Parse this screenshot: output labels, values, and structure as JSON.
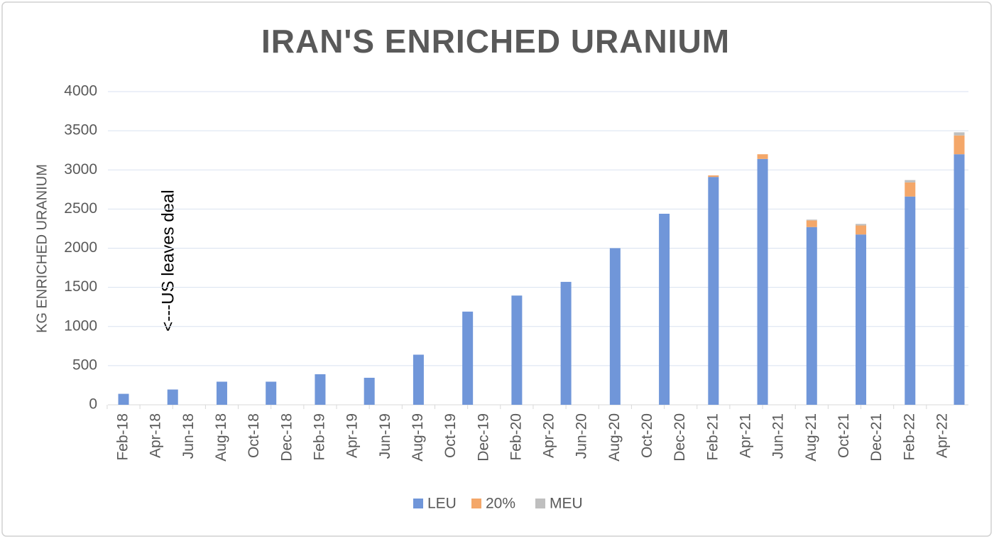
{
  "chart_data": {
    "type": "stacked-bar",
    "title": "IRAN'S ENRICHED URANIUM",
    "y_label": "KG ENRICHED URANIUM",
    "annotation": "<---US leaves deal",
    "categories": [
      "Feb-18",
      null,
      "Apr-18",
      null,
      "Jun-18",
      null,
      "Aug-18",
      null,
      "Oct-18",
      null,
      "Dec-18",
      null,
      "Feb-19",
      null,
      "Apr-19",
      null,
      "Jun-19",
      null,
      "Aug-19",
      null,
      "Oct-19",
      null,
      "Dec-19",
      null,
      "Feb-20",
      null,
      "Apr-20",
      null,
      "Jun-20",
      null,
      "Aug-20",
      null,
      "Oct-20",
      null,
      "Dec-20",
      null,
      "Feb-21",
      null,
      "Apr-21",
      null,
      "Jun-21",
      null,
      "Aug-21",
      null,
      "Oct-21",
      null,
      "Dec-21",
      null,
      "Feb-22",
      null,
      "Apr-22",
      null
    ],
    "series": [
      {
        "name": "LEU",
        "color": "#7096d9",
        "values": [
          140,
          null,
          null,
          195,
          null,
          null,
          295,
          null,
          null,
          295,
          null,
          null,
          390,
          null,
          null,
          345,
          null,
          null,
          640,
          null,
          null,
          1190,
          null,
          null,
          1395,
          null,
          null,
          1570,
          null,
          null,
          2000,
          null,
          null,
          2440,
          null,
          null,
          2910,
          null,
          null,
          3140,
          null,
          null,
          2270,
          null,
          null,
          2175,
          null,
          null,
          2660,
          null,
          null,
          3200
        ]
      },
      {
        "name": "20%",
        "color": "#f4a769",
        "values": [
          null,
          null,
          null,
          null,
          null,
          null,
          null,
          null,
          null,
          null,
          null,
          null,
          null,
          null,
          null,
          null,
          null,
          null,
          null,
          null,
          null,
          null,
          null,
          null,
          null,
          null,
          null,
          null,
          null,
          null,
          null,
          null,
          null,
          null,
          null,
          null,
          20,
          null,
          null,
          60,
          null,
          null,
          85,
          null,
          null,
          115,
          null,
          null,
          180,
          null,
          null,
          240
        ]
      },
      {
        "name": "MEU",
        "color": "#bfbfbf",
        "values": [
          null,
          null,
          null,
          null,
          null,
          null,
          null,
          null,
          null,
          null,
          null,
          null,
          null,
          null,
          null,
          null,
          null,
          null,
          null,
          null,
          null,
          null,
          null,
          null,
          null,
          null,
          null,
          null,
          null,
          null,
          null,
          null,
          null,
          null,
          null,
          null,
          null,
          null,
          null,
          null,
          null,
          null,
          10,
          null,
          null,
          20,
          null,
          null,
          30,
          null,
          null,
          40
        ]
      }
    ],
    "ylim": [
      0,
      4000
    ],
    "yticks": [
      0,
      500,
      1000,
      1500,
      2000,
      2500,
      3000,
      3500,
      4000
    ],
    "grid": true,
    "legend": "bottom"
  }
}
